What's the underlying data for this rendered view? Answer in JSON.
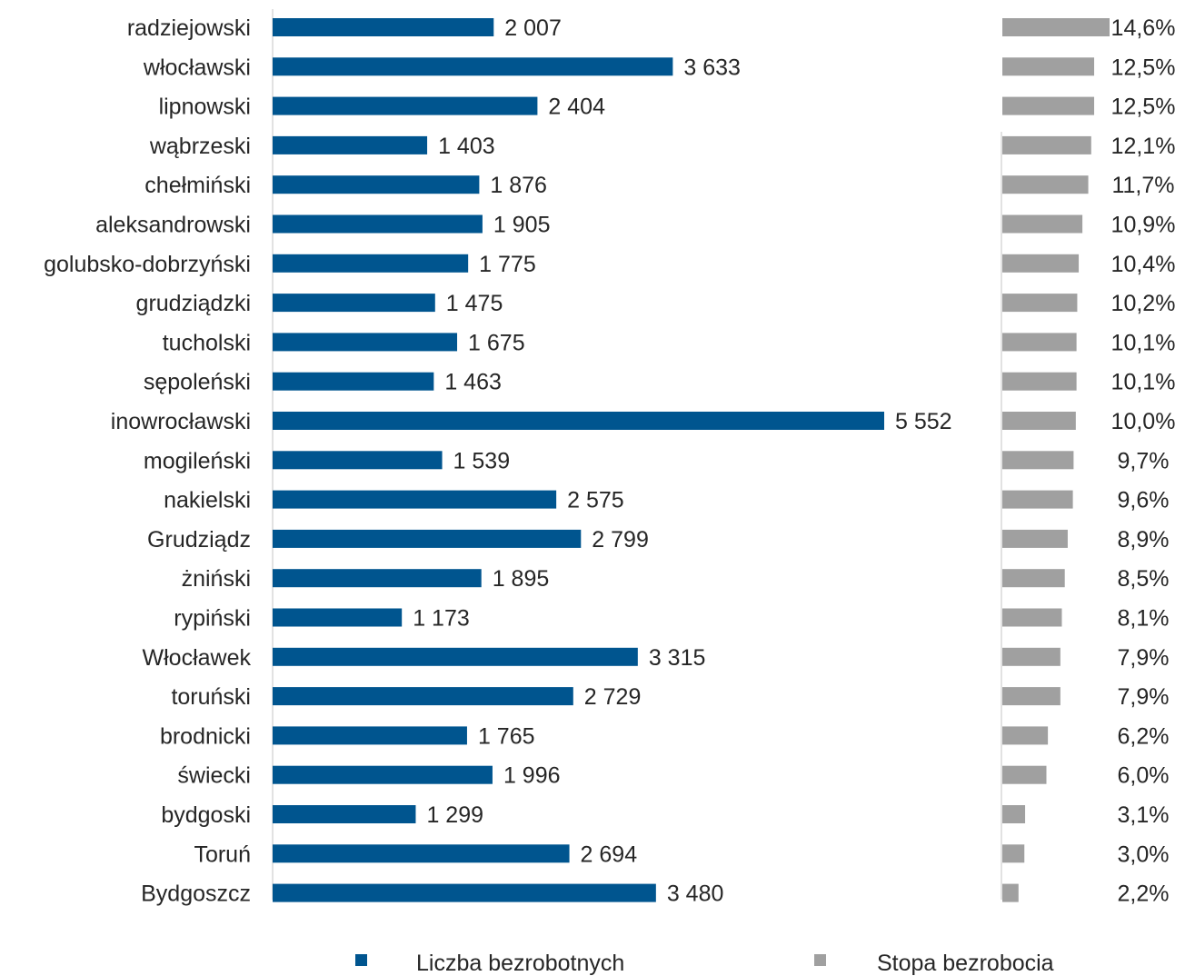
{
  "chart_data": {
    "type": "bar",
    "orientation": "horizontal",
    "categories": [
      "radziejowski",
      "włocławski",
      "lipnowski",
      "wąbrzeski",
      "chełmiński",
      "aleksandrowski",
      "golubsko-dobrzyński",
      "grudziądzki",
      "tucholski",
      "sępoleński",
      "inowrocławski",
      "mogileński",
      "nakielski",
      "Grudziądz",
      "żniński",
      "rypiński",
      "Włocławek",
      "toruński",
      "brodnicki",
      "świecki",
      "bydgoski",
      "Toruń",
      "Bydgoszcz"
    ],
    "series": [
      {
        "name": "Liczba bezrobotnych",
        "color": "#00558F",
        "values": [
          2007,
          3633,
          2404,
          1403,
          1876,
          1905,
          1775,
          1475,
          1675,
          1463,
          5552,
          1539,
          2575,
          2799,
          1895,
          1173,
          3315,
          2729,
          1765,
          1996,
          1299,
          2694,
          3480
        ],
        "labels": [
          "2 007",
          "3 633",
          "2 404",
          "1 403",
          "1 876",
          "1 905",
          "1 775",
          "1 475",
          "1 675",
          "1 463",
          "5 552",
          "1 539",
          "2 575",
          "2 799",
          "1 895",
          "1 173",
          "3 315",
          "2 729",
          "1 765",
          "1 996",
          "1 299",
          "2 694",
          "3 480"
        ]
      },
      {
        "name": "Stopa bezrobocia",
        "color": "#A0A0A0",
        "values": [
          14.6,
          12.5,
          12.5,
          12.1,
          11.7,
          10.9,
          10.4,
          10.2,
          10.1,
          10.1,
          10.0,
          9.7,
          9.6,
          8.9,
          8.5,
          8.1,
          7.9,
          7.9,
          6.2,
          6.0,
          3.1,
          3.0,
          2.2
        ],
        "labels": [
          "14,6%",
          "12,5%",
          "12,5%",
          "12,1%",
          "11,7%",
          "10,9%",
          "10,4%",
          "10,2%",
          "10,1%",
          "10,1%",
          "10,0%",
          "9,7%",
          "9,6%",
          "8,9%",
          "8,5%",
          "8,1%",
          "7,9%",
          "7,9%",
          "6,2%",
          "6,0%",
          "3,1%",
          "3,0%",
          "2,2%"
        ]
      }
    ],
    "title": "",
    "xlabel": "",
    "ylabel": "",
    "legend": "bottom",
    "grid": false
  },
  "legend": {
    "items": [
      {
        "label": "Liczba bezrobotnych",
        "color": "#00558F"
      },
      {
        "label": "Stopa bezrobocia",
        "color": "#A0A0A0"
      }
    ]
  }
}
